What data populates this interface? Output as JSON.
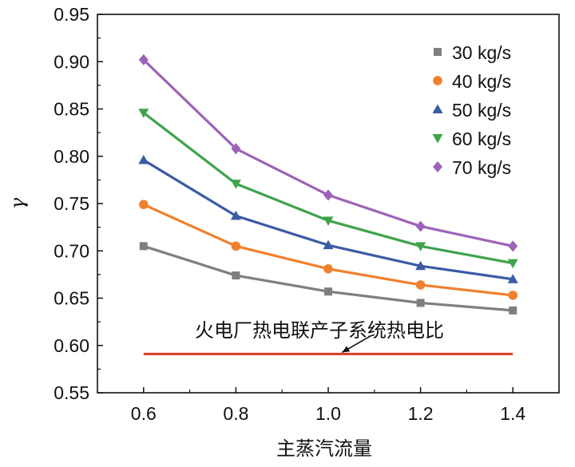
{
  "chart_data": {
    "type": "line",
    "title": "",
    "xlabel": "主蒸汽流量",
    "ylabel": "γ",
    "xlim": [
      0.5,
      1.5
    ],
    "ylim": [
      0.55,
      0.95
    ],
    "x_ticks": [
      "0.6",
      "0.8",
      "1.0",
      "1.2",
      "1.4"
    ],
    "x_tick_values": [
      0.6,
      0.8,
      1.0,
      1.2,
      1.4
    ],
    "y_ticks": [
      "0.55",
      "0.60",
      "0.65",
      "0.70",
      "0.75",
      "0.80",
      "0.85",
      "0.90",
      "0.95"
    ],
    "y_tick_values": [
      0.55,
      0.6,
      0.65,
      0.7,
      0.75,
      0.8,
      0.85,
      0.9,
      0.95
    ],
    "x": [
      0.6,
      0.8,
      1.0,
      1.2,
      1.4
    ],
    "series": [
      {
        "name": "30 kg/s",
        "values": [
          0.705,
          0.674,
          0.657,
          0.645,
          0.637
        ],
        "color": "#7f7f7f",
        "marker": "square"
      },
      {
        "name": "40 kg/s",
        "values": [
          0.749,
          0.705,
          0.681,
          0.664,
          0.653
        ],
        "color": "#f07f2e",
        "marker": "circle"
      },
      {
        "name": "50 kg/s",
        "values": [
          0.796,
          0.737,
          0.706,
          0.684,
          0.67
        ],
        "color": "#3a5ba5",
        "marker": "triangle-up"
      },
      {
        "name": "60 kg/s",
        "values": [
          0.846,
          0.771,
          0.732,
          0.705,
          0.687
        ],
        "color": "#3fa34d",
        "marker": "triangle-down"
      },
      {
        "name": "70 kg/s",
        "values": [
          0.902,
          0.808,
          0.759,
          0.726,
          0.705
        ],
        "color": "#9e62b8",
        "marker": "diamond"
      }
    ],
    "reference_line": {
      "label": "火电厂热电联产子系统热电比",
      "value": 0.591,
      "x_range": [
        0.6,
        1.4
      ],
      "color": "#d9442b"
    },
    "legend_position": "top-right",
    "grid": false
  }
}
